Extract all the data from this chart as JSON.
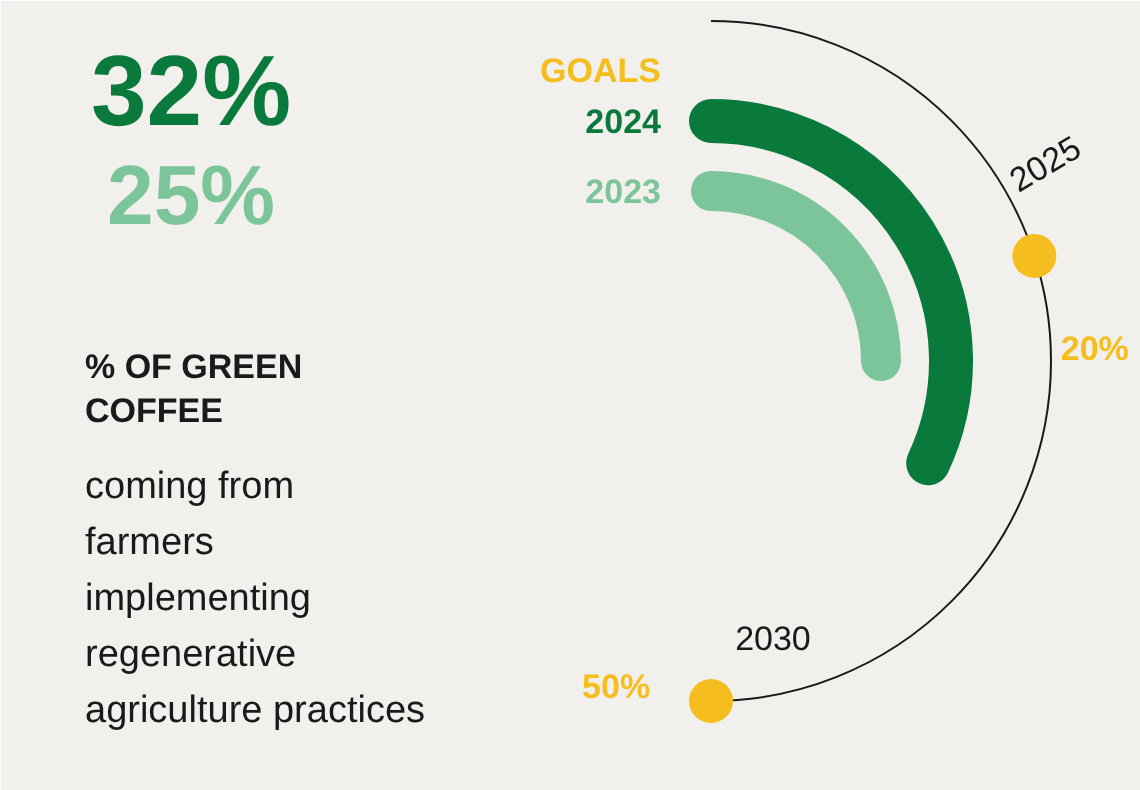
{
  "chart_data": {
    "type": "other",
    "title": "% OF GREEN\nCOFFEE",
    "subtitle": "coming from\nfarmers\nimplementing\nregenerative\nagriculture practices",
    "categories": [
      "2025",
      "2030"
    ],
    "series": [
      {
        "name": "GOALS",
        "type": "scatter",
        "color": "#f5bd1e",
        "values": [
          20,
          50
        ],
        "value_labels": [
          "20%",
          "50%"
        ]
      },
      {
        "name": "2024",
        "type": "bar",
        "color": "#0a7a3c",
        "values": [
          32,
          null
        ],
        "value_labels": [
          "32%",
          null
        ]
      },
      {
        "name": "2023",
        "type": "bar",
        "color": "#7cc49a",
        "values": [
          25,
          null
        ],
        "value_labels": [
          "25%",
          null
        ]
      }
    ]
  }
}
